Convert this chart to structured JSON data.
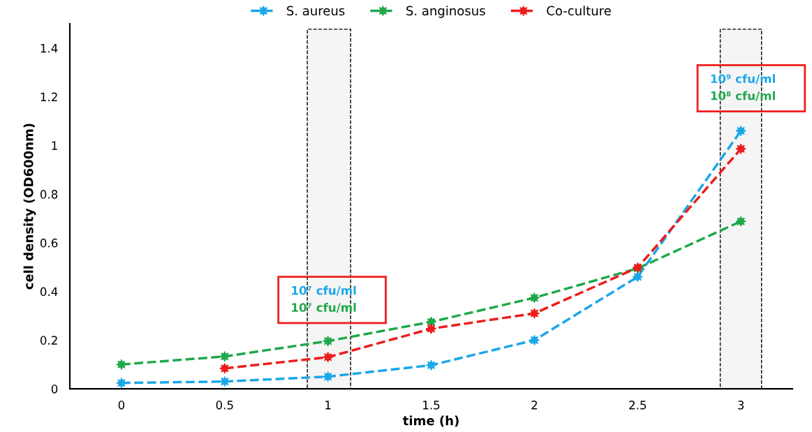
{
  "chart_data": {
    "type": "line",
    "xlabel": "time (h)",
    "ylabel": "cell density (OD600nm)",
    "xlim": [
      -0.25,
      3.25
    ],
    "xticks": [
      0,
      0.5,
      1,
      1.5,
      2,
      2.5,
      3
    ],
    "ylim": [
      0,
      1.5
    ],
    "yticks": [
      0,
      0.2,
      0.4,
      0.6,
      0.8,
      1,
      1.2,
      1.4
    ],
    "grid": false,
    "legend": "top",
    "marker": "star",
    "line_style": "dashed",
    "series": [
      {
        "name": "S. aureus",
        "color": "#1aa7e8",
        "x": [
          0,
          0.5,
          1,
          1.5,
          2,
          2.5,
          3
        ],
        "values": [
          0.024,
          0.03,
          0.05,
          0.097,
          0.2,
          0.46,
          1.06
        ]
      },
      {
        "name": "S. anginosus",
        "color": "#1fa84a",
        "x": [
          0,
          0.5,
          1,
          1.5,
          2,
          2.5,
          3
        ],
        "values": [
          0.1,
          0.133,
          0.196,
          0.275,
          0.374,
          0.495,
          0.688
        ]
      },
      {
        "name": "Co-culture",
        "color": "#ee1c1c",
        "x": [
          0.5,
          1,
          1.5,
          2,
          2.5,
          3
        ],
        "values": [
          0.084,
          0.13,
          0.247,
          0.31,
          0.498,
          0.986
        ]
      }
    ],
    "bands": [
      {
        "axis": "x",
        "from": 0.9,
        "to": 1.11,
        "color": "#000000"
      },
      {
        "axis": "x",
        "from": 2.9,
        "to": 3.1,
        "color": "#000000"
      }
    ],
    "annotations": [
      "10⁷ cfu/ml",
      "10⁷ cfu/ml",
      "10⁹ cfu/ml",
      "10⁸ cfu/ml"
    ]
  }
}
